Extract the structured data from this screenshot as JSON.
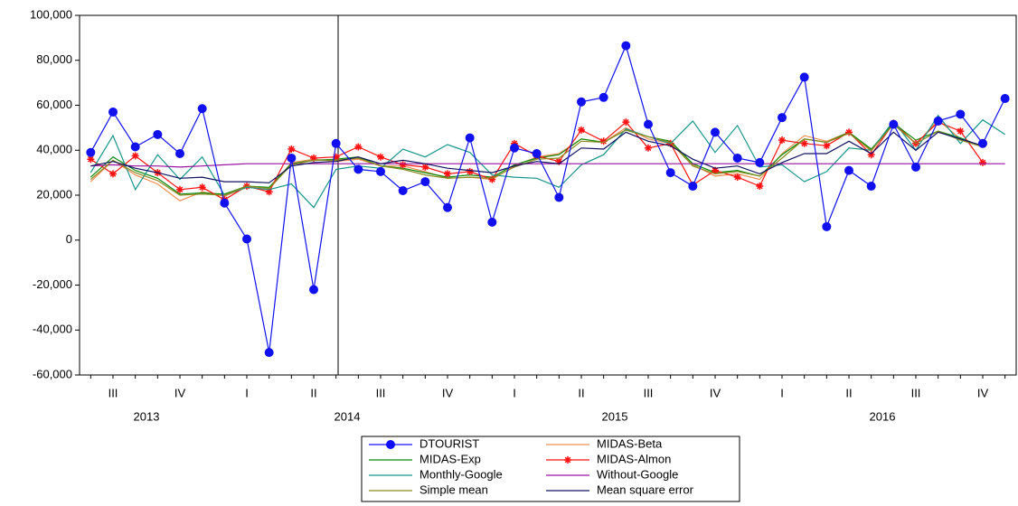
{
  "chart_data": {
    "type": "line",
    "categories": [
      null,
      "III",
      null,
      null,
      "IV",
      null,
      null,
      "I",
      null,
      null,
      "II",
      null,
      null,
      "III",
      null,
      null,
      "IV",
      null,
      null,
      "I",
      null,
      null,
      "II",
      null,
      null,
      "III",
      null,
      null,
      "IV",
      null,
      null,
      "I",
      null,
      null,
      "II",
      null,
      null,
      "III",
      null,
      null,
      "IV",
      null
    ],
    "year_labels": [
      "2013",
      "2014",
      "2015",
      "2016"
    ],
    "ylim": [
      -60000,
      100000
    ],
    "yticks": [
      {
        "value": -60000,
        "label": "-60,000"
      },
      {
        "value": -40000,
        "label": "-40,000"
      },
      {
        "value": -20000,
        "label": "-20,000"
      },
      0,
      {
        "value": 20000,
        "label": "20,000"
      },
      {
        "value": 40000,
        "label": "40,000"
      },
      {
        "value": 60000,
        "label": "60,000"
      },
      {
        "value": 80000,
        "label": "80,000"
      },
      {
        "value": 100000,
        "label": "100,000"
      }
    ],
    "grid": false,
    "series": [
      {
        "name": "DTOURIST",
        "color": "#1010f0",
        "marker": "circle",
        "values": [
          39000,
          57000,
          41500,
          47000,
          38500,
          58500,
          16500,
          500,
          -50000,
          36500,
          -22000,
          43000,
          31500,
          30500,
          22000,
          26000,
          14500,
          45500,
          8000,
          41000,
          38500,
          19000,
          61500,
          63500,
          86500,
          51500,
          30000,
          24000,
          48000,
          36500,
          34500,
          54500,
          72500,
          6000,
          31000,
          24000,
          51500,
          32500,
          53000,
          56000,
          43000,
          63000
        ]
      },
      {
        "name": "MIDAS-Beta",
        "color": "#f08c50",
        "marker": "none",
        "values": [
          26000,
          35500,
          29000,
          25000,
          17500,
          21500,
          19500,
          23500,
          22500,
          34500,
          36000,
          35000,
          36000,
          33000,
          33000,
          30500,
          27500,
          28000,
          27000,
          33000,
          37000,
          38500,
          45000,
          43500,
          50000,
          45000,
          43000,
          33500,
          28500,
          29500,
          27000,
          38500,
          46500,
          44000,
          48000,
          39500,
          53000,
          42500,
          53500,
          45000,
          41500,
          null
        ]
      },
      {
        "name": "MIDAS-Exp",
        "color": "#0a8a0a",
        "marker": "none",
        "values": [
          28000,
          37000,
          31000,
          27500,
          20500,
          21000,
          20500,
          24000,
          23500,
          34000,
          35500,
          36000,
          37000,
          33000,
          32000,
          30000,
          28000,
          29000,
          28000,
          33500,
          36500,
          38000,
          45000,
          43500,
          49000,
          46000,
          44000,
          34000,
          30000,
          31000,
          28500,
          38000,
          45000,
          43500,
          48000,
          40500,
          52000,
          44500,
          48500,
          45500,
          41500,
          null
        ]
      },
      {
        "name": "MIDAS-Almon",
        "color": "#ff1010",
        "marker": "star",
        "values": [
          36000,
          29500,
          37500,
          30000,
          22500,
          23500,
          18000,
          24000,
          21500,
          40500,
          36500,
          37000,
          41500,
          37000,
          33500,
          32500,
          29500,
          30500,
          27000,
          43000,
          37500,
          35000,
          49000,
          44000,
          52500,
          41000,
          43000,
          24500,
          31000,
          28000,
          24000,
          44500,
          43000,
          42000,
          48000,
          38000,
          52000,
          43000,
          52500,
          48500,
          34500,
          null
        ]
      },
      {
        "name": "Monthly-Google",
        "color": "#15968a",
        "marker": "none",
        "values": [
          30000,
          46500,
          22500,
          38000,
          27000,
          37000,
          20000,
          23500,
          22500,
          25000,
          14500,
          31500,
          33000,
          32000,
          40500,
          37000,
          42500,
          39000,
          29000,
          28000,
          27500,
          23500,
          33500,
          38000,
          49500,
          46000,
          43000,
          53000,
          39000,
          51000,
          32500,
          33500,
          26000,
          30500,
          41000,
          40000,
          53000,
          40000,
          55500,
          43000,
          53500,
          47000
        ]
      },
      {
        "name": "Without-Google",
        "color": "#9a10a0",
        "marker": "none",
        "values": [
          33000,
          33500,
          33000,
          33000,
          32500,
          33000,
          33500,
          34000,
          34000,
          34000,
          34000,
          34000,
          34000,
          34000,
          34000,
          34000,
          34000,
          34000,
          34000,
          34000,
          34000,
          34000,
          34000,
          34000,
          34000,
          34000,
          34000,
          34000,
          34000,
          34000,
          34000,
          34000,
          34000,
          34000,
          34000,
          34000,
          34000,
          34000,
          34000,
          34000,
          34000,
          34000
        ]
      },
      {
        "name": "Simple mean",
        "color": "#8a8a20",
        "marker": "none",
        "values": [
          27000,
          35500,
          30000,
          26500,
          20000,
          20500,
          20000,
          24000,
          23000,
          33500,
          35500,
          35500,
          36500,
          33000,
          31500,
          29000,
          27500,
          28000,
          27500,
          32500,
          36000,
          36500,
          44000,
          43500,
          49000,
          46000,
          43500,
          33000,
          29500,
          30500,
          28500,
          36500,
          45000,
          43500,
          47500,
          40000,
          51500,
          43000,
          48500,
          44500,
          41500,
          null
        ]
      },
      {
        "name": "Mean square error",
        "color": "#101060",
        "marker": "none",
        "values": [
          33000,
          35000,
          32000,
          30000,
          27500,
          28000,
          26000,
          26000,
          25500,
          33000,
          34500,
          35000,
          37000,
          34000,
          35500,
          34000,
          32000,
          31000,
          30000,
          33000,
          35000,
          34000,
          41000,
          40500,
          48000,
          44000,
          42000,
          36000,
          32000,
          33000,
          29500,
          34500,
          38500,
          38500,
          44000,
          38500,
          48000,
          40000,
          48000,
          45000,
          42000,
          null
        ]
      }
    ]
  }
}
